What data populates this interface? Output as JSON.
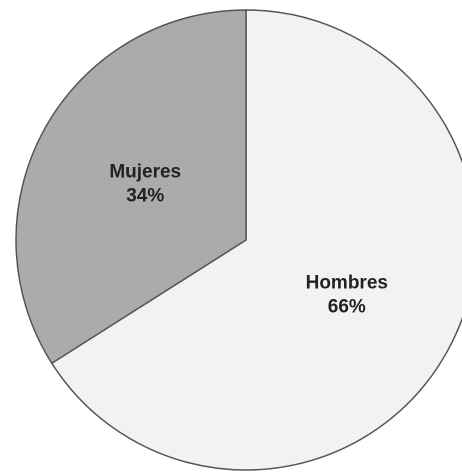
{
  "chart_data": {
    "type": "pie",
    "categories": [
      "Hombres",
      "Mujeres"
    ],
    "values": [
      66,
      34
    ],
    "value_labels": [
      "66%",
      "34%"
    ],
    "colors": [
      "#f2f2f2",
      "#ababab"
    ]
  }
}
